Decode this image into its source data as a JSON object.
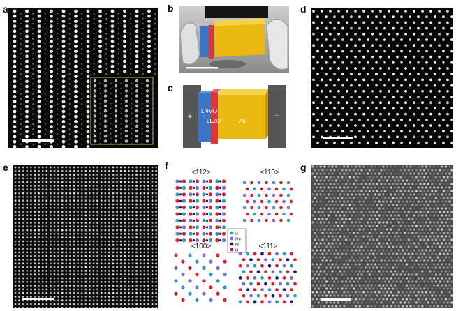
{
  "panels": {
    "a": {
      "label": "a"
    },
    "b": {
      "label": "b"
    },
    "c": {
      "label": "c",
      "plus": "+",
      "minus": "−",
      "lnmo": "LNMO",
      "llzo": "LLZO",
      "au": "Au"
    },
    "d": {
      "label": "d"
    },
    "e": {
      "label": "e"
    },
    "f": {
      "label": "f",
      "views": [
        "<112>",
        "<110>",
        "<100>",
        "<111>"
      ],
      "legend": [
        {
          "text": "Li",
          "color": "#2a9ab8"
        },
        {
          "text": "Mn",
          "color": "#7070d8"
        },
        {
          "text": "Ni",
          "color": "#1a1a70"
        },
        {
          "text": "O",
          "color": "#d8202a"
        }
      ]
    },
    "g": {
      "label": "g"
    }
  },
  "colors": {
    "lnmo": "#3d74c4",
    "llzo": "#d8383a",
    "au": "#e9b912",
    "electrode": "#555555",
    "inset_border": "#9ccc3c"
  }
}
